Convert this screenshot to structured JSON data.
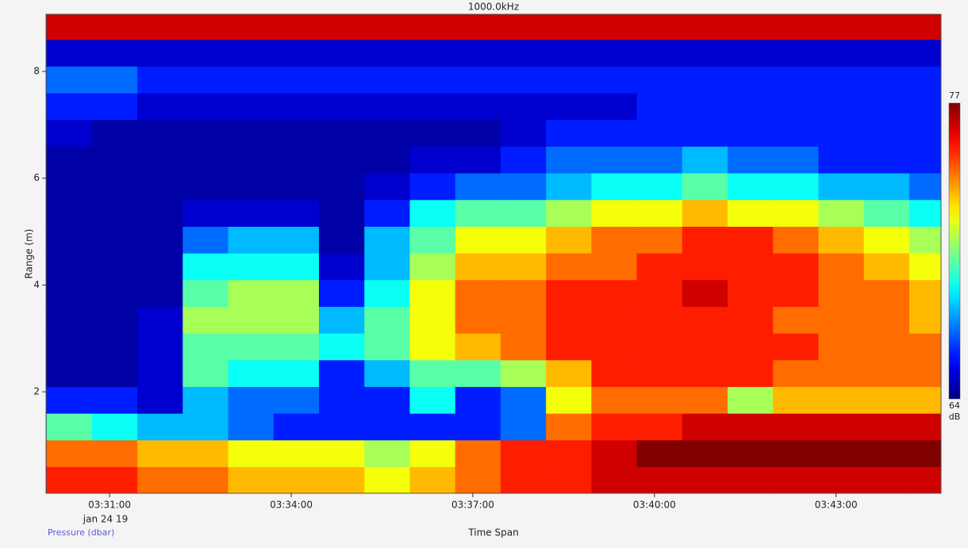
{
  "chart_data": {
    "type": "heatmap",
    "title": "1000.0kHz",
    "x_label": "Time Span",
    "y_label": "Range (m)",
    "date_label": "jan 24 19",
    "footer": "Pressure (dbar)",
    "colormap": "jet",
    "clim": [
      64,
      77
    ],
    "colorbar_label": "dB",
    "xlim": [
      12597,
      13484
    ],
    "xticks": [
      {
        "value": 12660,
        "label": "03:31:00"
      },
      {
        "value": 12840,
        "label": "03:34:00"
      },
      {
        "value": 13020,
        "label": "03:37:00"
      },
      {
        "value": 13200,
        "label": "03:40:00"
      },
      {
        "value": 13380,
        "label": "03:43:00"
      }
    ],
    "ylim": [
      0.1,
      9.07
    ],
    "yticks": [
      2,
      4,
      6,
      8
    ],
    "x": [
      12620,
      12665,
      12710,
      12755,
      12800,
      12845,
      12890,
      12935,
      12980,
      13025,
      13070,
      13115,
      13160,
      13205,
      13250,
      13295,
      13340,
      13385,
      13430,
      13475
    ],
    "y": [
      0.35,
      0.85,
      1.35,
      1.85,
      2.35,
      2.85,
      3.35,
      3.85,
      4.35,
      4.85,
      5.35,
      5.85,
      6.35,
      6.85,
      7.35,
      7.85,
      8.35,
      8.85
    ],
    "values": [
      [
        75,
        75,
        74,
        74,
        73,
        73,
        73,
        72,
        73,
        74,
        75,
        75,
        76,
        76,
        76,
        76,
        76,
        76,
        76,
        76
      ],
      [
        74,
        74,
        73,
        73,
        72,
        72,
        72,
        71,
        72,
        74,
        75,
        75,
        76,
        77,
        77,
        77,
        77,
        77,
        77,
        77
      ],
      [
        70,
        69,
        68,
        68,
        67,
        66,
        66,
        66,
        66,
        66,
        67,
        74,
        75,
        75,
        76,
        76,
        76,
        76,
        76,
        76
      ],
      [
        66,
        66,
        65,
        68,
        67,
        67,
        66,
        66,
        69,
        66,
        67,
        72,
        74,
        74,
        74,
        71,
        73,
        73,
        73,
        73
      ],
      [
        64.5,
        64.5,
        65,
        70,
        69,
        69,
        66,
        68,
        70,
        70,
        71,
        73,
        75,
        75,
        75,
        75,
        74,
        74,
        74,
        74
      ],
      [
        64.5,
        64.5,
        65,
        70,
        70,
        70,
        69,
        70,
        72,
        73,
        74,
        75,
        75,
        75,
        75,
        75,
        75,
        74,
        74,
        74
      ],
      [
        64.5,
        64.5,
        65,
        71,
        71,
        71,
        68,
        70,
        72,
        74,
        74,
        75,
        75,
        75,
        75,
        75,
        74,
        74,
        74,
        73
      ],
      [
        64.5,
        64.5,
        64.5,
        70,
        71,
        71,
        66,
        69,
        72,
        74,
        74,
        75,
        75,
        75,
        76,
        75,
        75,
        74,
        74,
        73
      ],
      [
        64.5,
        64.5,
        64.5,
        69,
        69,
        69,
        65,
        68,
        71,
        73,
        73,
        74,
        74,
        75,
        75,
        75,
        75,
        74,
        73,
        72
      ],
      [
        64.5,
        64.5,
        64.5,
        67,
        68,
        68,
        64.5,
        68,
        70,
        72,
        72,
        73,
        74,
        74,
        75,
        75,
        74,
        73,
        72,
        71
      ],
      [
        64.5,
        64.5,
        64.5,
        65,
        65,
        65,
        64.5,
        66,
        69,
        70,
        70,
        71,
        72,
        72,
        73,
        72,
        72,
        71,
        70,
        69
      ],
      [
        64.5,
        64.5,
        64.5,
        64.5,
        64.5,
        64.5,
        64.5,
        65,
        66,
        67,
        67,
        68,
        69,
        69,
        70,
        69,
        69,
        68,
        68,
        67
      ],
      [
        64.5,
        64.5,
        64.5,
        64.5,
        64.5,
        64.5,
        64.5,
        64.5,
        65,
        65,
        66,
        67,
        67,
        67,
        68,
        67,
        67,
        66,
        66,
        66
      ],
      [
        65,
        64.5,
        64.5,
        64.5,
        64.5,
        64.5,
        64.5,
        64.5,
        64.5,
        64.5,
        65,
        66,
        66,
        66,
        66,
        66,
        66,
        66,
        66,
        66
      ],
      [
        66,
        66,
        65,
        65,
        65,
        65,
        65,
        65,
        65,
        65,
        65,
        65,
        65,
        66,
        66,
        66,
        66,
        66,
        66,
        66
      ],
      [
        67,
        67,
        66,
        66,
        66,
        66,
        66,
        66,
        66,
        66,
        66,
        66,
        66,
        66,
        66,
        66,
        66,
        66,
        66,
        66
      ],
      [
        65,
        65,
        65,
        65,
        65,
        65,
        65,
        65,
        65,
        65,
        65,
        65,
        65,
        65,
        65,
        65,
        65,
        65,
        65,
        65
      ],
      [
        76,
        76,
        76,
        76,
        76,
        76,
        76,
        76,
        76,
        76,
        76,
        76,
        76,
        76,
        76,
        76,
        76,
        76,
        76,
        76
      ]
    ]
  }
}
